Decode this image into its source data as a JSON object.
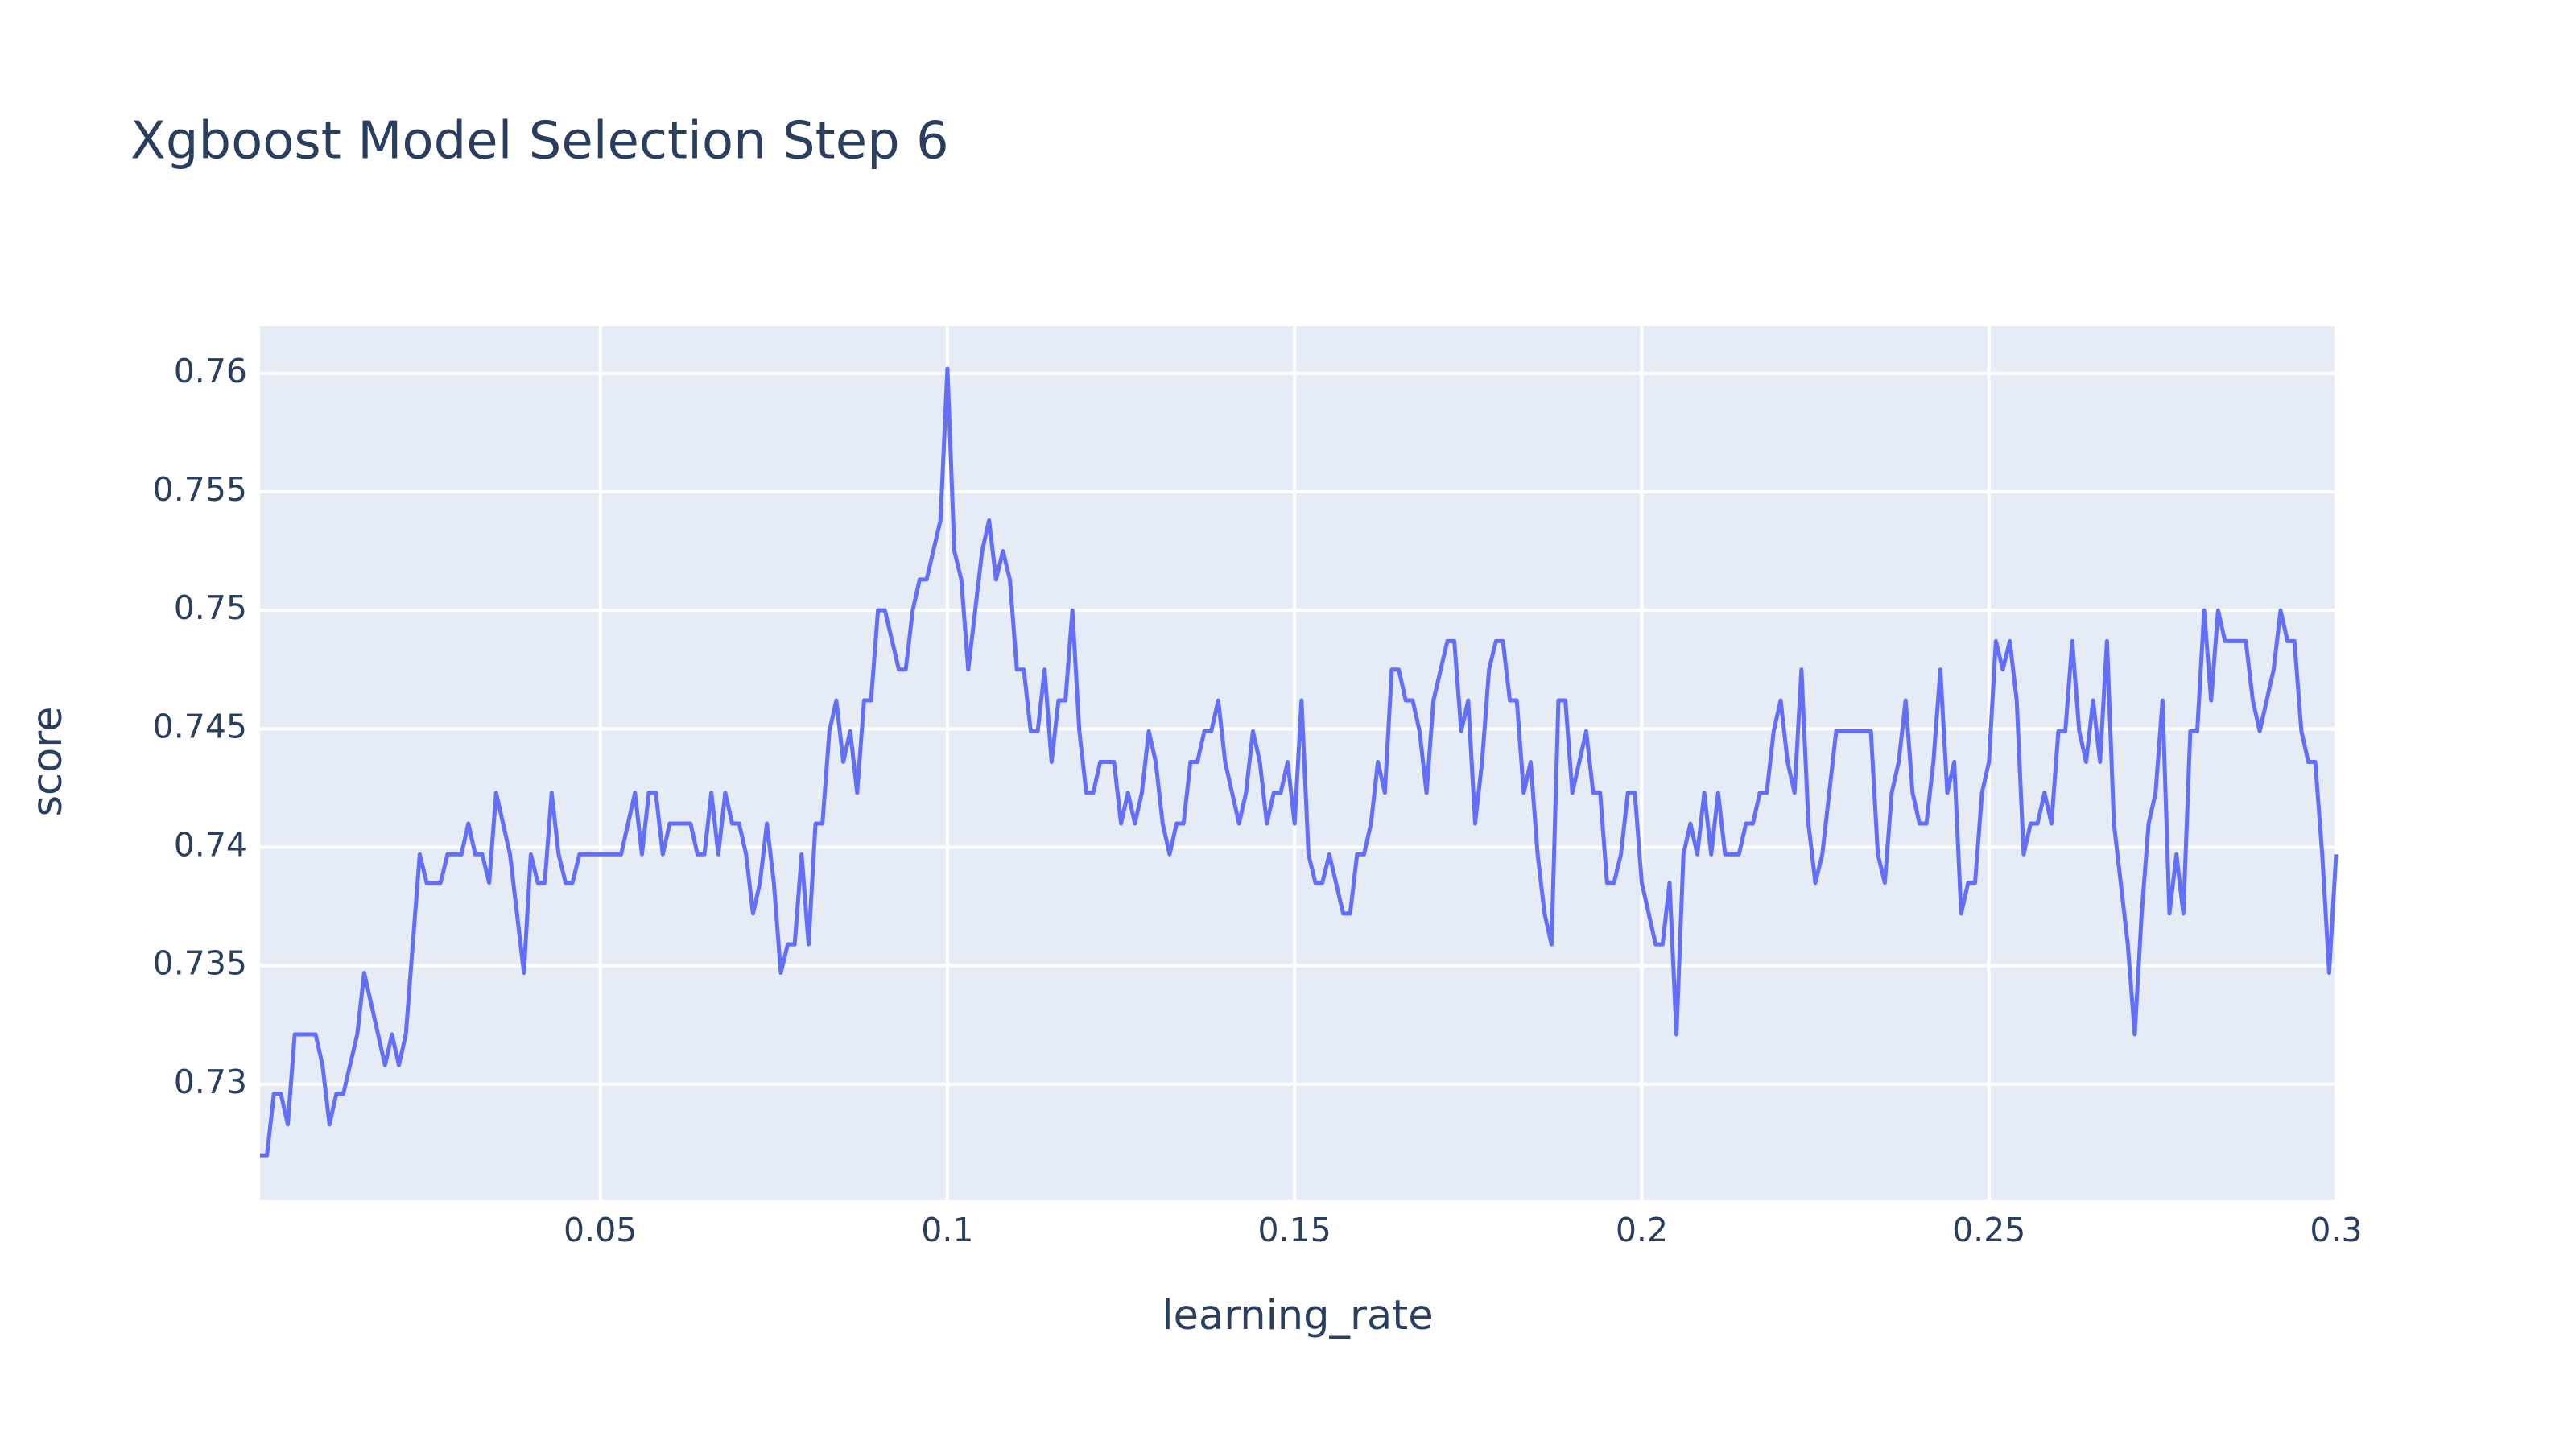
{
  "chart_data": {
    "type": "line",
    "title": "Xgboost Model Selection Step 6",
    "x_label": "learning_rate",
    "y_label": "score",
    "color": "#636efa",
    "grid": true,
    "xlim": [
      0.001,
      0.3
    ],
    "ylim": [
      0.7251,
      0.762
    ],
    "xticks": [
      0.05,
      0.1,
      0.15,
      0.2,
      0.25,
      0.3
    ],
    "yticks": [
      0.73,
      0.735,
      0.74,
      0.745,
      0.75,
      0.755,
      0.76
    ],
    "x": [
      0.001,
      0.002,
      0.003,
      0.004,
      0.005,
      0.006,
      0.009,
      0.01,
      0.011,
      0.012,
      0.013,
      0.015,
      0.016,
      0.019,
      0.02,
      0.021,
      0.022,
      0.024,
      0.025,
      0.027,
      0.028,
      0.03,
      0.031,
      0.032,
      0.033,
      0.034,
      0.035,
      0.037,
      0.039,
      0.04,
      0.041,
      0.042,
      0.043,
      0.044,
      0.045,
      0.046,
      0.047,
      0.053,
      0.055,
      0.056,
      0.057,
      0.058,
      0.059,
      0.06,
      0.063,
      0.064,
      0.065,
      0.066,
      0.067,
      0.068,
      0.069,
      0.07,
      0.071,
      0.072,
      0.073,
      0.074,
      0.075,
      0.076,
      0.077,
      0.078,
      0.079,
      0.08,
      0.081,
      0.082,
      0.083,
      0.084,
      0.085,
      0.086,
      0.087,
      0.088,
      0.089,
      0.09,
      0.091,
      0.093,
      0.094,
      0.095,
      0.096,
      0.097,
      0.099,
      0.1,
      0.101,
      0.102,
      0.103,
      0.105,
      0.106,
      0.107,
      0.108,
      0.109,
      0.11,
      0.111,
      0.112,
      0.113,
      0.114,
      0.115,
      0.116,
      0.117,
      0.118,
      0.119,
      0.12,
      0.121,
      0.122,
      0.124,
      0.125,
      0.126,
      0.127,
      0.128,
      0.129,
      0.13,
      0.131,
      0.132,
      0.133,
      0.134,
      0.135,
      0.136,
      0.137,
      0.138,
      0.139,
      0.14,
      0.142,
      0.143,
      0.144,
      0.145,
      0.146,
      0.147,
      0.148,
      0.149,
      0.15,
      0.151,
      0.152,
      0.153,
      0.154,
      0.155,
      0.157,
      0.158,
      0.159,
      0.16,
      0.161,
      0.162,
      0.163,
      0.164,
      0.165,
      0.166,
      0.167,
      0.168,
      0.169,
      0.17,
      0.172,
      0.173,
      0.174,
      0.175,
      0.176,
      0.177,
      0.178,
      0.179,
      0.18,
      0.181,
      0.182,
      0.183,
      0.184,
      0.185,
      0.186,
      0.187,
      0.188,
      0.189,
      0.19,
      0.191,
      0.192,
      0.193,
      0.194,
      0.195,
      0.196,
      0.197,
      0.198,
      0.199,
      0.2,
      0.202,
      0.203,
      0.204,
      0.205,
      0.206,
      0.207,
      0.208,
      0.209,
      0.21,
      0.211,
      0.212,
      0.214,
      0.215,
      0.216,
      0.217,
      0.218,
      0.219,
      0.22,
      0.221,
      0.222,
      0.223,
      0.224,
      0.225,
      0.226,
      0.228,
      0.233,
      0.234,
      0.235,
      0.236,
      0.237,
      0.238,
      0.239,
      0.24,
      0.241,
      0.242,
      0.243,
      0.244,
      0.245,
      0.246,
      0.247,
      0.248,
      0.249,
      0.25,
      0.251,
      0.252,
      0.253,
      0.254,
      0.255,
      0.256,
      0.257,
      0.258,
      0.259,
      0.26,
      0.261,
      0.262,
      0.263,
      0.264,
      0.265,
      0.266,
      0.267,
      0.268,
      0.27,
      0.271,
      0.272,
      0.273,
      0.274,
      0.275,
      0.276,
      0.277,
      0.278,
      0.279,
      0.28,
      0.281,
      0.282,
      0.283,
      0.284,
      0.287,
      0.288,
      0.289,
      0.291,
      0.292,
      0.293,
      0.294,
      0.295,
      0.296,
      0.297,
      0.298,
      0.299,
      0.3
    ],
    "values": [
      0.727,
      0.727,
      0.7296,
      0.7296,
      0.7283,
      0.7321,
      0.7321,
      0.7308,
      0.7283,
      0.7296,
      0.7296,
      0.7321,
      0.7347,
      0.7308,
      0.7321,
      0.7308,
      0.7321,
      0.7397,
      0.7385,
      0.7385,
      0.7397,
      0.7397,
      0.741,
      0.7397,
      0.7397,
      0.7385,
      0.7423,
      0.7397,
      0.7347,
      0.7397,
      0.7385,
      0.7385,
      0.7423,
      0.7397,
      0.7385,
      0.7385,
      0.7397,
      0.7397,
      0.7423,
      0.7397,
      0.7423,
      0.7423,
      0.7397,
      0.741,
      0.741,
      0.7397,
      0.7397,
      0.7423,
      0.7397,
      0.7423,
      0.741,
      0.741,
      0.7397,
      0.7372,
      0.7385,
      0.741,
      0.7385,
      0.7347,
      0.7359,
      0.7359,
      0.7397,
      0.7359,
      0.741,
      0.741,
      0.7449,
      0.7462,
      0.7436,
      0.7449,
      0.7423,
      0.7462,
      0.7462,
      0.75,
      0.75,
      0.7475,
      0.7475,
      0.75,
      0.7513,
      0.7513,
      0.7538,
      0.7602,
      0.7525,
      0.7513,
      0.7475,
      0.7525,
      0.7538,
      0.7513,
      0.7525,
      0.7513,
      0.7475,
      0.7475,
      0.7449,
      0.7449,
      0.7475,
      0.7436,
      0.7462,
      0.7462,
      0.75,
      0.7449,
      0.7423,
      0.7423,
      0.7436,
      0.7436,
      0.741,
      0.7423,
      0.741,
      0.7423,
      0.7449,
      0.7436,
      0.741,
      0.7397,
      0.741,
      0.741,
      0.7436,
      0.7436,
      0.7449,
      0.7449,
      0.7462,
      0.7436,
      0.741,
      0.7423,
      0.7449,
      0.7436,
      0.741,
      0.7423,
      0.7423,
      0.7436,
      0.741,
      0.7462,
      0.7397,
      0.7385,
      0.7385,
      0.7397,
      0.7372,
      0.7372,
      0.7397,
      0.7397,
      0.741,
      0.7436,
      0.7423,
      0.7475,
      0.7475,
      0.7462,
      0.7462,
      0.7449,
      0.7423,
      0.7462,
      0.7487,
      0.7487,
      0.7449,
      0.7462,
      0.741,
      0.7436,
      0.7475,
      0.7487,
      0.7487,
      0.7462,
      0.7462,
      0.7423,
      0.7436,
      0.7397,
      0.7372,
      0.7359,
      0.7462,
      0.7462,
      0.7423,
      0.7436,
      0.7449,
      0.7423,
      0.7423,
      0.7385,
      0.7385,
      0.7397,
      0.7423,
      0.7423,
      0.7385,
      0.7359,
      0.7359,
      0.7385,
      0.7321,
      0.7397,
      0.741,
      0.7397,
      0.7423,
      0.7397,
      0.7423,
      0.7397,
      0.7397,
      0.741,
      0.741,
      0.7423,
      0.7423,
      0.7449,
      0.7462,
      0.7436,
      0.7423,
      0.7475,
      0.741,
      0.7385,
      0.7397,
      0.7449,
      0.7449,
      0.7397,
      0.7385,
      0.7423,
      0.7436,
      0.7462,
      0.7423,
      0.741,
      0.741,
      0.7436,
      0.7475,
      0.7423,
      0.7436,
      0.7372,
      0.7385,
      0.7385,
      0.7423,
      0.7436,
      0.7487,
      0.7475,
      0.7487,
      0.7462,
      0.7397,
      0.741,
      0.741,
      0.7423,
      0.741,
      0.7449,
      0.7449,
      0.7487,
      0.7449,
      0.7436,
      0.7462,
      0.7436,
      0.7487,
      0.741,
      0.7359,
      0.7321,
      0.7372,
      0.741,
      0.7423,
      0.7462,
      0.7372,
      0.7397,
      0.7372,
      0.7449,
      0.7449,
      0.75,
      0.7462,
      0.75,
      0.7487,
      0.7487,
      0.7462,
      0.7449,
      0.7475,
      0.75,
      0.7487,
      0.7487,
      0.7449,
      0.7436,
      0.7436,
      0.7397,
      0.7347,
      0.7397
    ]
  }
}
